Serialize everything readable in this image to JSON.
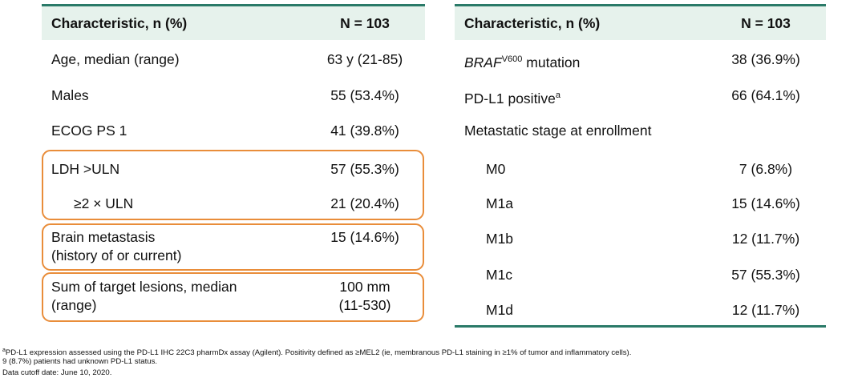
{
  "left_table": {
    "header": [
      "Characteristic, n (%)",
      "N = 103"
    ],
    "rows": [
      {
        "label": "Age, median (range)",
        "value": "63 y (21-85)"
      },
      {
        "label": "Males",
        "value": "55 (53.4%)"
      },
      {
        "label": "ECOG PS 1",
        "value": "41 (39.8%)"
      },
      {
        "label": "LDH >ULN",
        "value": "57 (55.3%)"
      },
      {
        "label": "≥2 × ULN",
        "value": "21 (20.4%)"
      },
      {
        "label": [
          "Brain metastasis",
          "(history of or current)"
        ],
        "value": "15 (14.6%)"
      },
      {
        "label": [
          "Sum of target lesions, median",
          "(range)"
        ],
        "value": [
          "100 mm",
          "(11-530)"
        ]
      }
    ]
  },
  "right_table": {
    "header": [
      "Characteristic, n (%)",
      "N = 103"
    ],
    "rows": [
      {
        "label_italic": "BRAF",
        "label_sup": "V600",
        "label": "mutation",
        "value": "38 (36.9%)"
      },
      {
        "label": "PD-L1 positive",
        "label_sup": "a",
        "value": "66 (64.1%)"
      },
      {
        "label": "Metastatic stage at enrollment"
      },
      {
        "label": "M0",
        "value": "7 (6.8%)"
      },
      {
        "label": "M1a",
        "value": "15 (14.6%)"
      },
      {
        "label": "M1b",
        "value": "12 (11.7%)"
      },
      {
        "label": "M1c",
        "value": "57 (55.3%)"
      },
      {
        "label": "M1d",
        "value": "12 (11.7%)"
      }
    ]
  },
  "footnote": {
    "sup": "a",
    "lines": [
      "PD-L1 expression assessed using the PD-L1 IHC 22C3 pharmDx assay (Agilent). Positivity defined as ≥MEL2 (ie, membranous PD-L1 staining in ≥1% of tumor and inflammatory cells).",
      "9 (8.7%) patients had unknown PD-L1 status.",
      "Data cutoff date: June 10, 2020."
    ]
  }
}
